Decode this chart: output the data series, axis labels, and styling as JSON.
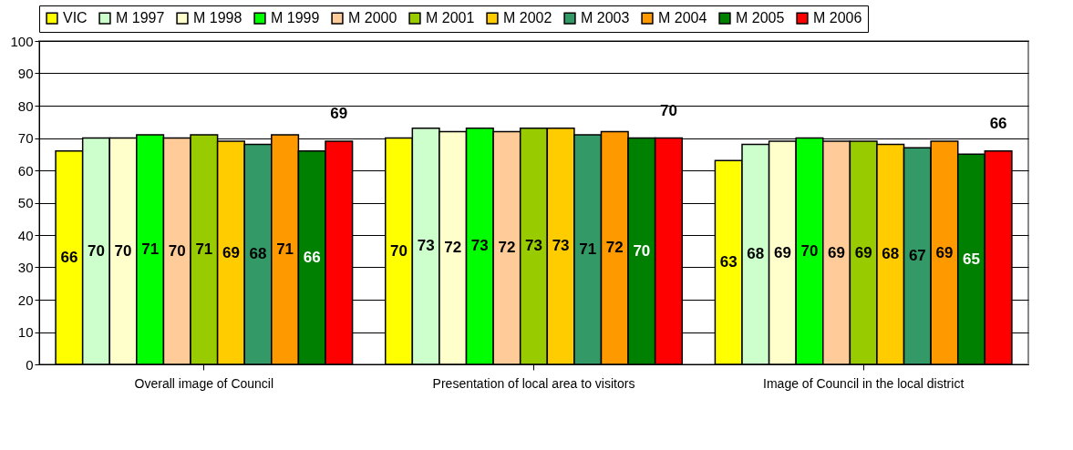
{
  "chart_data": {
    "type": "bar",
    "categories": [
      "Overall image of Council",
      "Presentation of local area to visitors",
      "Image of Council in the local district"
    ],
    "series": [
      {
        "name": "VIC",
        "color": "#ffff00",
        "values": [
          66,
          70,
          63
        ]
      },
      {
        "name": "M 1997",
        "color": "#ccffcc",
        "values": [
          70,
          73,
          68
        ]
      },
      {
        "name": "M 1998",
        "color": "#ffffcc",
        "values": [
          70,
          72,
          69
        ]
      },
      {
        "name": "M 1999",
        "color": "#00ff00",
        "values": [
          71,
          73,
          70
        ]
      },
      {
        "name": "M 2000",
        "color": "#ffcc99",
        "values": [
          70,
          72,
          69
        ]
      },
      {
        "name": "M 2001",
        "color": "#99cc00",
        "values": [
          71,
          73,
          69
        ]
      },
      {
        "name": "M 2002",
        "color": "#ffcc00",
        "values": [
          69,
          73,
          68
        ]
      },
      {
        "name": "M 2003",
        "color": "#339966",
        "values": [
          68,
          71,
          67
        ]
      },
      {
        "name": "M 2004",
        "color": "#ff9900",
        "values": [
          71,
          72,
          69
        ]
      },
      {
        "name": "M 2005",
        "color": "#008000",
        "values": [
          66,
          70,
          65
        ]
      },
      {
        "name": "M 2006",
        "color": "#ff0000",
        "values": [
          69,
          70,
          66
        ]
      }
    ],
    "ylim": [
      0,
      100
    ],
    "yticks": [
      0,
      10,
      20,
      30,
      40,
      50,
      60,
      70,
      80,
      90,
      100
    ],
    "grid": "y",
    "legend": "top",
    "data_labels": true
  }
}
